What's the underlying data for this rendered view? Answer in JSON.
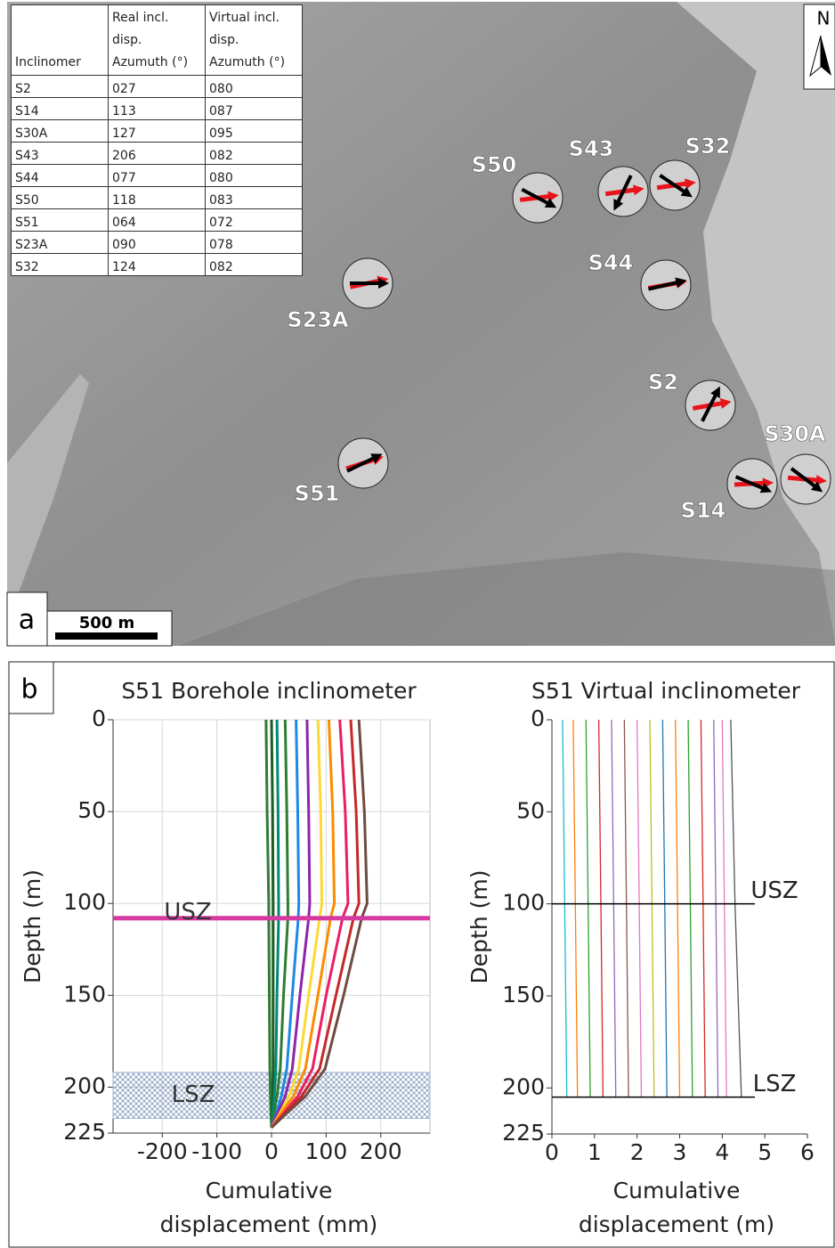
{
  "panel_a": {
    "label": "a",
    "north": "N",
    "scale_bar": "500 m",
    "table": {
      "header": [
        "Inclinomer",
        "Real incl. disp. Azumuth (°)",
        "Virtual incl. disp. Azumuth (°)"
      ],
      "rows": [
        [
          "S2",
          "027",
          "080"
        ],
        [
          "S14",
          "113",
          "087"
        ],
        [
          "S30A",
          "127",
          "095"
        ],
        [
          "S43",
          "206",
          "082"
        ],
        [
          "S44",
          "077",
          "080"
        ],
        [
          "S50",
          "118",
          "083"
        ],
        [
          "S51",
          "064",
          "072"
        ],
        [
          "S23A",
          "090",
          "078"
        ],
        [
          "S32",
          "124",
          "082"
        ]
      ]
    },
    "stations": [
      "S2",
      "S14",
      "S30A",
      "S43",
      "S44",
      "S50",
      "S51",
      "S23A",
      "S32"
    ]
  },
  "panel_b": {
    "label": "b"
  },
  "chart_data": [
    {
      "type": "line",
      "title": "S51 Borehole inclinometer",
      "xlabel": "Cumulative displacement (mm)",
      "ylabel": "Depth (m)",
      "xlim": [
        -290,
        290
      ],
      "xticks": [
        -200,
        -100,
        0,
        100,
        200
      ],
      "ylim": [
        0,
        225
      ],
      "yticks": [
        0,
        50,
        100,
        150,
        200,
        225
      ],
      "y_inverted": true,
      "grid": true,
      "frame": true,
      "y": [
        0,
        50,
        100,
        108,
        150,
        190,
        205,
        215,
        222
      ],
      "series": [
        {
          "color": "#2e7d32",
          "values": [
            -10,
            -8,
            -5,
            -5,
            -4,
            -3,
            -2,
            -1,
            0
          ]
        },
        {
          "color": "#1b5e20",
          "values": [
            0,
            2,
            3,
            3,
            3,
            3,
            2,
            1,
            0
          ]
        },
        {
          "color": "#00897b",
          "values": [
            10,
            12,
            13,
            13,
            10,
            8,
            5,
            2,
            0
          ]
        },
        {
          "color": "#2e7d32",
          "values": [
            25,
            28,
            30,
            30,
            22,
            16,
            10,
            4,
            0
          ]
        },
        {
          "color": "#1e88e5",
          "values": [
            45,
            48,
            50,
            49,
            38,
            28,
            18,
            8,
            0
          ]
        },
        {
          "color": "#8e24aa",
          "values": [
            65,
            68,
            70,
            68,
            52,
            38,
            25,
            10,
            0
          ]
        },
        {
          "color": "#fdd835",
          "values": [
            85,
            90,
            92,
            88,
            68,
            50,
            32,
            14,
            0
          ]
        },
        {
          "color": "#fb8c00",
          "values": [
            105,
            112,
            115,
            108,
            85,
            62,
            40,
            16,
            0
          ]
        },
        {
          "color": "#e91e63",
          "values": [
            125,
            135,
            140,
            130,
            100,
            75,
            48,
            20,
            0
          ]
        },
        {
          "color": "#c62828",
          "values": [
            145,
            155,
            160,
            150,
            118,
            88,
            55,
            22,
            0
          ]
        },
        {
          "color": "#6d4c41",
          "values": [
            160,
            170,
            175,
            165,
            132,
            98,
            62,
            25,
            0
          ]
        }
      ],
      "annotations": [
        {
          "text": "USZ",
          "y": 108,
          "color": "#d63aa0"
        },
        {
          "text": "LSZ",
          "y": [
            192,
            217
          ],
          "color": "#9fb7d6"
        }
      ]
    },
    {
      "type": "line",
      "title": "S51 Virtual inclinometer",
      "xlabel": "Cumulative displacement (m)",
      "ylabel": "Depth (m)",
      "xlim": [
        0,
        6
      ],
      "xticks": [
        0,
        1,
        2,
        3,
        4,
        5,
        6
      ],
      "ylim": [
        0,
        225
      ],
      "yticks": [
        0,
        50,
        100,
        150,
        200,
        225
      ],
      "y_inverted": true,
      "grid": false,
      "frame": false,
      "y": [
        0,
        100,
        205
      ],
      "series": [
        {
          "color": "#17becf",
          "values": [
            0.25,
            0.3,
            0.35
          ]
        },
        {
          "color": "#ff7f0e",
          "values": [
            0.5,
            0.55,
            0.6
          ]
        },
        {
          "color": "#2ca02c",
          "values": [
            0.8,
            0.85,
            0.9
          ]
        },
        {
          "color": "#d62728",
          "values": [
            1.1,
            1.15,
            1.2
          ]
        },
        {
          "color": "#9467bd",
          "values": [
            1.4,
            1.45,
            1.5
          ]
        },
        {
          "color": "#8c564b",
          "values": [
            1.7,
            1.75,
            1.8
          ]
        },
        {
          "color": "#e377c2",
          "values": [
            2.0,
            2.05,
            2.1
          ]
        },
        {
          "color": "#bcbd22",
          "values": [
            2.3,
            2.35,
            2.4
          ]
        },
        {
          "color": "#1f77b4",
          "values": [
            2.6,
            2.65,
            2.7
          ]
        },
        {
          "color": "#ff7f0e",
          "values": [
            2.9,
            2.95,
            3.0
          ]
        },
        {
          "color": "#2ca02c",
          "values": [
            3.2,
            3.25,
            3.3
          ]
        },
        {
          "color": "#d62728",
          "values": [
            3.5,
            3.55,
            3.6
          ]
        },
        {
          "color": "#9467bd",
          "values": [
            3.8,
            3.85,
            3.9
          ]
        },
        {
          "color": "#e377c2",
          "values": [
            4.0,
            4.05,
            4.1
          ]
        },
        {
          "color": "#555555",
          "values": [
            4.2,
            4.3,
            4.45
          ]
        }
      ],
      "annotations": [
        {
          "text": "USZ",
          "y": 100,
          "color": "#000000"
        },
        {
          "text": "LSZ",
          "y": 205,
          "color": "#000000"
        }
      ]
    }
  ]
}
